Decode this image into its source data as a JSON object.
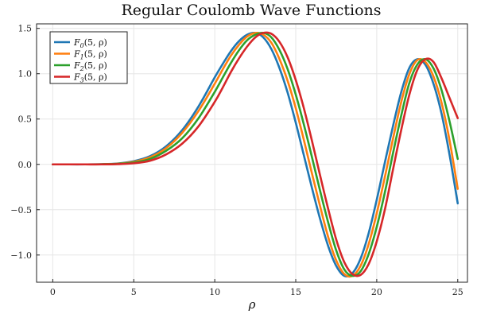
{
  "chart_data": {
    "type": "line",
    "title": "Regular Coulomb Wave Functions",
    "xlabel": "ρ",
    "ylabel": "",
    "xlim": [
      -1,
      25.6
    ],
    "ylim": [
      -1.3,
      1.55
    ],
    "xticks": [
      0,
      5,
      10,
      15,
      20,
      25
    ],
    "xtick_labels": [
      "0",
      "5",
      "10",
      "15",
      "20",
      "25"
    ],
    "yticks": [
      -1.0,
      -0.5,
      0.0,
      0.5,
      1.0,
      1.5
    ],
    "ytick_labels": [
      "−1.0",
      "−0.5",
      "0.0",
      "0.5",
      "1.0",
      "1.5"
    ],
    "grid": true,
    "legend_position": "top-left",
    "x_domain": [
      0,
      25
    ],
    "series": [
      {
        "name": "F₀(5, ρ)",
        "label_base": "F",
        "label_sub": "0",
        "label_args": "(5, ρ)",
        "color": "#1f77b4",
        "x": [
          0,
          1,
          2,
          3,
          4,
          5,
          6,
          7,
          8,
          9,
          10,
          10.5,
          11,
          11.5,
          12,
          12.5,
          13,
          13.5,
          14,
          14.5,
          15,
          15.5,
          16,
          16.5,
          17,
          17.5,
          18,
          18.5,
          19,
          19.5,
          20,
          20.5,
          21,
          21.5,
          22,
          22.5,
          23,
          23.5,
          24,
          24.5,
          25
        ],
        "values": [
          0,
          0,
          0,
          0.002,
          0.01,
          0.035,
          0.09,
          0.2,
          0.38,
          0.64,
          0.96,
          1.11,
          1.25,
          1.36,
          1.43,
          1.45,
          1.4,
          1.27,
          1.06,
          0.79,
          0.46,
          0.1,
          -0.26,
          -0.6,
          -0.9,
          -1.12,
          -1.23,
          -1.2,
          -1.04,
          -0.76,
          -0.39,
          0.02,
          0.42,
          0.79,
          1.06,
          1.16,
          1.1,
          0.89,
          0.56,
          0.1,
          -0.43
        ]
      },
      {
        "name": "F₁(5, ρ)",
        "label_base": "F",
        "label_sub": "1",
        "label_args": "(5, ρ)",
        "color": "#ff7f0e",
        "x": [
          0,
          1,
          2,
          3,
          4,
          5,
          6,
          7,
          8,
          9,
          10,
          10.5,
          11,
          11.5,
          12,
          12.5,
          13,
          13.5,
          14,
          14.5,
          15,
          15.5,
          16,
          16.5,
          17,
          17.5,
          18,
          18.5,
          19,
          19.5,
          20,
          20.5,
          21,
          21.5,
          22,
          22.5,
          23,
          23.5,
          24,
          24.5,
          25
        ],
        "values": [
          0,
          0,
          0,
          0.001,
          0.007,
          0.028,
          0.078,
          0.18,
          0.35,
          0.59,
          0.89,
          1.05,
          1.2,
          1.32,
          1.41,
          1.45,
          1.43,
          1.34,
          1.16,
          0.92,
          0.62,
          0.27,
          -0.1,
          -0.46,
          -0.8,
          -1.06,
          -1.21,
          -1.23,
          -1.12,
          -0.88,
          -0.54,
          -0.14,
          0.28,
          0.68,
          0.99,
          1.15,
          1.13,
          0.97,
          0.68,
          0.26,
          -0.27
        ]
      },
      {
        "name": "F₂(5, ρ)",
        "label_base": "F",
        "label_sub": "2",
        "label_args": "(5, ρ)",
        "color": "#2ca02c",
        "x": [
          0,
          1,
          2,
          3,
          4,
          5,
          6,
          7,
          8,
          9,
          10,
          10.5,
          11,
          11.5,
          12,
          12.5,
          13,
          13.5,
          14,
          14.5,
          15,
          15.5,
          16,
          16.5,
          17,
          17.5,
          18,
          18.5,
          19,
          19.5,
          20,
          20.5,
          21,
          21.5,
          22,
          22.5,
          23,
          23.5,
          24,
          24.5,
          25
        ],
        "values": [
          0,
          0,
          0,
          0.001,
          0.005,
          0.02,
          0.06,
          0.15,
          0.29,
          0.51,
          0.8,
          0.96,
          1.12,
          1.26,
          1.37,
          1.43,
          1.45,
          1.4,
          1.26,
          1.05,
          0.77,
          0.44,
          0.08,
          -0.29,
          -0.64,
          -0.95,
          -1.16,
          -1.23,
          -1.18,
          -0.99,
          -0.69,
          -0.31,
          0.12,
          0.53,
          0.89,
          1.1,
          1.16,
          1.06,
          0.82,
          0.47,
          0.06
        ]
      },
      {
        "name": "F₃(5, ρ)",
        "label_base": "F",
        "label_sub": "3",
        "label_args": "(5, ρ)",
        "color": "#d62728",
        "x": [
          0,
          1,
          2,
          3,
          4,
          5,
          6,
          7,
          8,
          9,
          10,
          10.5,
          11,
          11.5,
          12,
          12.5,
          13,
          13.5,
          14,
          14.5,
          15,
          15.5,
          16,
          16.5,
          17,
          17.5,
          18,
          18.5,
          19,
          19.5,
          20,
          20.5,
          21,
          21.5,
          22,
          22.5,
          23,
          23.5,
          24,
          24.5,
          25
        ],
        "values": [
          0,
          0,
          0,
          0,
          0.003,
          0.012,
          0.04,
          0.11,
          0.23,
          0.42,
          0.69,
          0.85,
          1.02,
          1.17,
          1.3,
          1.4,
          1.45,
          1.44,
          1.35,
          1.18,
          0.93,
          0.62,
          0.26,
          -0.12,
          -0.49,
          -0.83,
          -1.08,
          -1.21,
          -1.22,
          -1.1,
          -0.85,
          -0.5,
          -0.06,
          0.37,
          0.76,
          1.04,
          1.16,
          1.13,
          0.95,
          0.73,
          0.51
        ]
      }
    ]
  }
}
